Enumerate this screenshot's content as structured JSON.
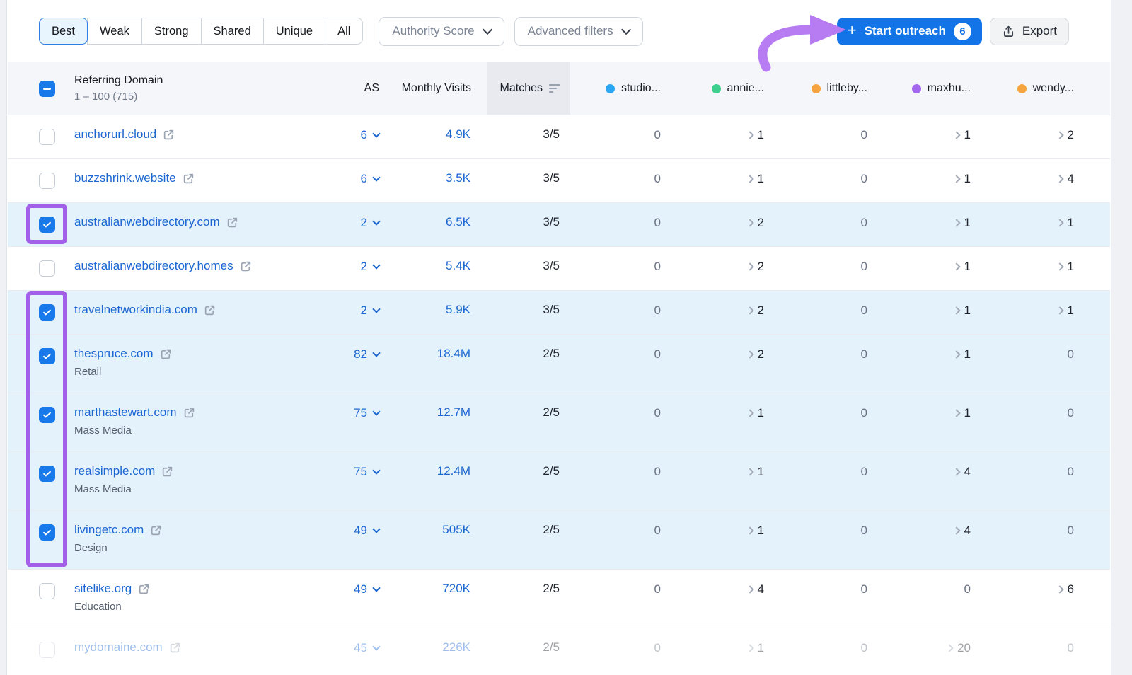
{
  "colors": {
    "accent_blue": "#1374e8",
    "link_blue": "#1b66d1",
    "selected_row_bg": "#e4f2fb",
    "annotation_purple": "#a35fe8",
    "arrow_purple": "#b77cf2",
    "checkbox_blue": "#1779ea"
  },
  "toolbar": {
    "filter_tabs": [
      {
        "label": "Best",
        "active": true
      },
      {
        "label": "Weak",
        "active": false
      },
      {
        "label": "Strong",
        "active": false
      },
      {
        "label": "Shared",
        "active": false
      },
      {
        "label": "Unique",
        "active": false
      },
      {
        "label": "All",
        "active": false
      }
    ],
    "authority_score_label": "Authority Score",
    "advanced_filters_label": "Advanced filters",
    "start_outreach": {
      "label": "Start outreach",
      "count": "6"
    },
    "export_label": "Export"
  },
  "table": {
    "header": {
      "referring_domain": "Referring Domain",
      "range": "1 – 100 (715)",
      "as": "AS",
      "monthly_visits": "Monthly Visits",
      "matches": "Matches",
      "sort_state": "descending",
      "competitors": [
        {
          "label": "studio...",
          "color": "#2ba7f5"
        },
        {
          "label": "annie...",
          "color": "#3ecf8e"
        },
        {
          "label": "littleby...",
          "color": "#f6a43f"
        },
        {
          "label": "maxhu...",
          "color": "#a267ee"
        },
        {
          "label": "wendy...",
          "color": "#f6a43f"
        }
      ]
    },
    "rows": [
      {
        "domain": "anchorurl.cloud",
        "category": "",
        "checked": false,
        "selected": false,
        "as": "6",
        "visits": "4.9K",
        "matches": "3/5",
        "values": [
          "0",
          ">1",
          "0",
          ">1",
          ">2"
        ],
        "faded": false
      },
      {
        "domain": "buzzshrink.website",
        "category": "",
        "checked": false,
        "selected": false,
        "as": "6",
        "visits": "3.5K",
        "matches": "3/5",
        "values": [
          "0",
          ">1",
          "0",
          ">1",
          ">4"
        ],
        "faded": false
      },
      {
        "domain": "australianwebdirectory.com",
        "category": "",
        "checked": true,
        "selected": true,
        "as": "2",
        "visits": "6.5K",
        "matches": "3/5",
        "values": [
          "0",
          ">2",
          "0",
          ">1",
          ">1"
        ],
        "faded": false
      },
      {
        "domain": "australianwebdirectory.homes",
        "category": "",
        "checked": false,
        "selected": false,
        "as": "2",
        "visits": "5.4K",
        "matches": "3/5",
        "values": [
          "0",
          ">2",
          "0",
          ">1",
          ">1"
        ],
        "faded": false
      },
      {
        "domain": "travelnetworkindia.com",
        "category": "",
        "checked": true,
        "selected": true,
        "as": "2",
        "visits": "5.9K",
        "matches": "3/5",
        "values": [
          "0",
          ">2",
          "0",
          ">1",
          ">1"
        ],
        "faded": false
      },
      {
        "domain": "thespruce.com",
        "category": "Retail",
        "checked": true,
        "selected": true,
        "as": "82",
        "visits": "18.4M",
        "matches": "2/5",
        "values": [
          "0",
          ">2",
          "0",
          ">1",
          "0"
        ],
        "faded": false
      },
      {
        "domain": "marthastewart.com",
        "category": "Mass Media",
        "checked": true,
        "selected": true,
        "as": "75",
        "visits": "12.7M",
        "matches": "2/5",
        "values": [
          "0",
          ">1",
          "0",
          ">1",
          "0"
        ],
        "faded": false
      },
      {
        "domain": "realsimple.com",
        "category": "Mass Media",
        "checked": true,
        "selected": true,
        "as": "75",
        "visits": "12.4M",
        "matches": "2/5",
        "values": [
          "0",
          ">1",
          "0",
          ">4",
          "0"
        ],
        "faded": false
      },
      {
        "domain": "livingetc.com",
        "category": "Design",
        "checked": true,
        "selected": true,
        "as": "49",
        "visits": "505K",
        "matches": "2/5",
        "values": [
          "0",
          ">1",
          "0",
          ">4",
          "0"
        ],
        "faded": false
      },
      {
        "domain": "sitelike.org",
        "category": "Education",
        "checked": false,
        "selected": false,
        "as": "49",
        "visits": "720K",
        "matches": "2/5",
        "values": [
          "0",
          ">4",
          "0",
          "0",
          ">6"
        ],
        "faded": false
      },
      {
        "domain": "mydomaine.com",
        "category": "",
        "checked": false,
        "selected": false,
        "as": "45",
        "visits": "226K",
        "matches": "2/5",
        "values": [
          "0",
          ">1",
          "0",
          ">20",
          "0"
        ],
        "faded": true
      }
    ]
  }
}
